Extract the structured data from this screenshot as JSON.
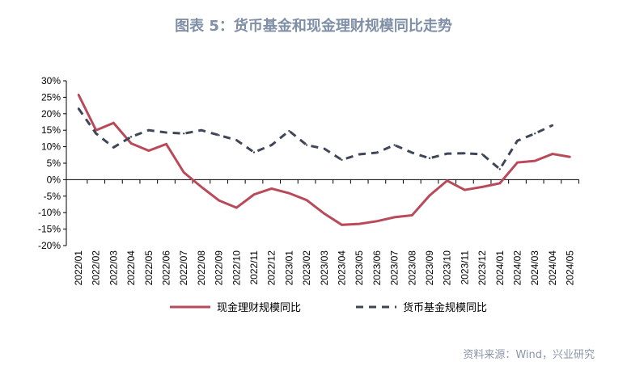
{
  "title": "图表 5：货币基金和现金理财规模同比走势",
  "source": "资料来源：Wind，兴业研究",
  "chart_data": {
    "type": "line",
    "categories": [
      "2022/01",
      "2022/02",
      "2022/03",
      "2022/04",
      "2022/05",
      "2022/06",
      "2022/07",
      "2022/08",
      "2022/09",
      "2022/10",
      "2022/11",
      "2022/12",
      "2023/01",
      "2023/02",
      "2023/03",
      "2023/04",
      "2023/05",
      "2023/06",
      "2023/07",
      "2023/08",
      "2023/09",
      "2023/10",
      "2023/11",
      "2023/12",
      "2024/01",
      "2024/02",
      "2024/03",
      "2024/04",
      "2024/05"
    ],
    "yticks": [
      "30%",
      "25%",
      "20%",
      "15%",
      "10%",
      "5%",
      "0%",
      "-5%",
      "-10%",
      "-15%",
      "-20%"
    ],
    "ylim": [
      -20,
      30
    ],
    "grid": false,
    "legend": "bottom",
    "series": [
      {
        "name": "现金理财规模同比",
        "color": "#b94a5a",
        "style": "solid",
        "values": [
          25.8,
          15,
          17.2,
          11,
          8.8,
          10.8,
          2.2,
          -2.2,
          -6.3,
          -8.5,
          -4.5,
          -2.7,
          -4.1,
          -6.2,
          -10.3,
          -13.7,
          -13.4,
          -12.6,
          -11.4,
          -10.8,
          -4.8,
          -0.3,
          -3.1,
          -2.2,
          -1.1,
          5.2,
          5.7,
          7.8,
          6.9
        ]
      },
      {
        "name": "货币基金规模同比",
        "color": "#3f4656",
        "style": "dashed",
        "values": [
          21.6,
          14,
          9.8,
          13,
          15,
          14.3,
          14,
          15,
          13.5,
          12,
          8.3,
          10.5,
          14.8,
          10.5,
          9.4,
          6,
          7.7,
          8.2,
          10.5,
          8.2,
          6.5,
          7.9,
          8,
          7.7,
          3.2,
          11.8,
          14,
          16.5,
          null
        ]
      }
    ]
  }
}
